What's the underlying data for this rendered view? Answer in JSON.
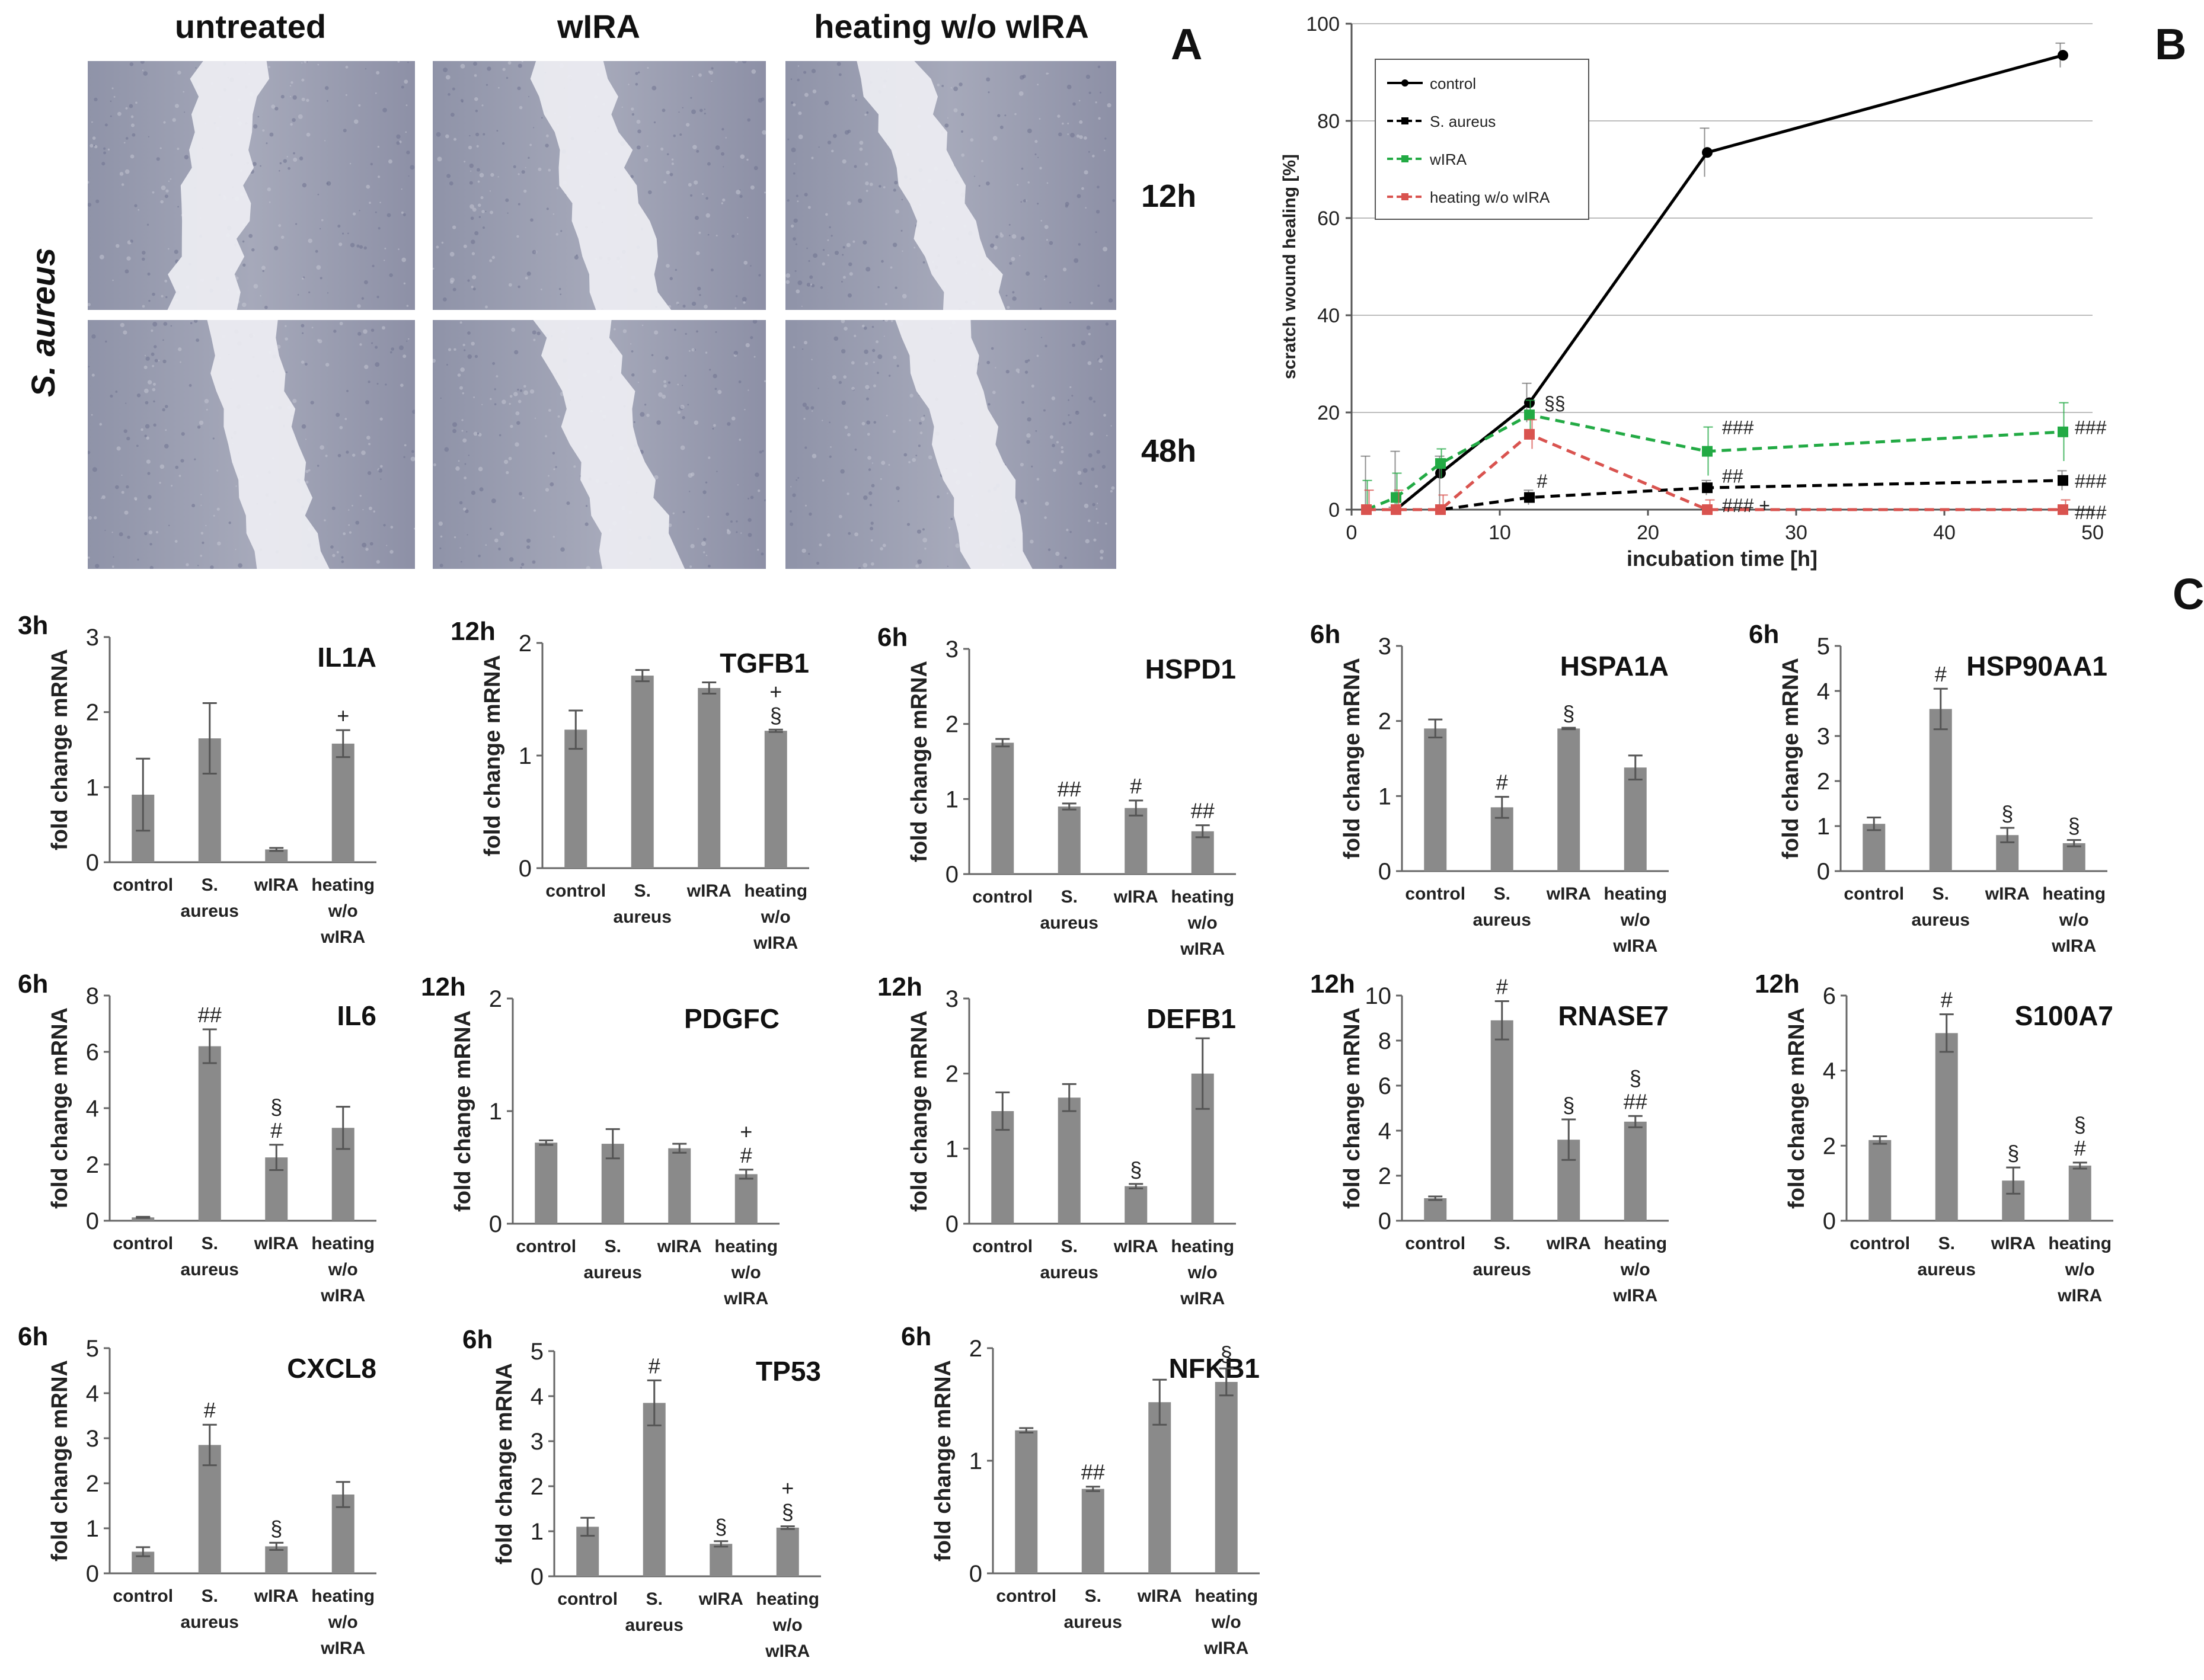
{
  "figure": {
    "panel_letters": [
      "A",
      "B",
      "C"
    ],
    "micrographs": {
      "side_label": "S. aureus",
      "columns": [
        "untreated",
        "wIRA",
        "heating w/o wIRA"
      ],
      "rows": [
        "12h",
        "48h"
      ]
    }
  },
  "chart_data": [
    {
      "id": "B",
      "type": "line",
      "title": "",
      "xlabel": "incubation time [h]",
      "ylabel": "scratch wound healing [%]",
      "xlim": [
        0,
        50
      ],
      "ylim": [
        0,
        100
      ],
      "xticks": [
        0,
        10,
        20,
        30,
        40,
        50
      ],
      "yticks": [
        0,
        20,
        40,
        60,
        80,
        100
      ],
      "grid": "horizontal",
      "legend_position": "top-left",
      "series": [
        {
          "name": "control",
          "color": "#000000",
          "dash": "solid",
          "marker": "circle",
          "x": [
            3,
            6,
            12,
            24,
            48
          ],
          "y": [
            0,
            7.5,
            22,
            73.5,
            93.5
          ],
          "err": [
            0.5,
            1,
            4,
            5,
            2.5
          ]
        },
        {
          "name": "S. aureus",
          "color": "#000000",
          "dash": "dashed",
          "marker": "square",
          "x": [
            1,
            3,
            6,
            12,
            24,
            48
          ],
          "y": [
            0,
            0,
            0,
            2.5,
            4.5,
            6
          ],
          "err": [
            11,
            12,
            11,
            1.5,
            1.5,
            2
          ]
        },
        {
          "name": "wIRA",
          "color": "#22aa44",
          "dash": "dashed",
          "marker": "square",
          "x": [
            1,
            3,
            6,
            12,
            24,
            48
          ],
          "y": [
            0,
            2.5,
            9.5,
            19.5,
            12,
            16
          ],
          "err": [
            6,
            5,
            3,
            3,
            5,
            6
          ]
        },
        {
          "name": "heating w/o wIRA",
          "color": "#d9534f",
          "dash": "dashed",
          "marker": "square",
          "x": [
            1,
            3,
            6,
            12,
            24,
            48
          ],
          "y": [
            0,
            0,
            0,
            15.5,
            0,
            0
          ],
          "err": [
            4,
            4,
            3,
            3,
            2,
            2
          ]
        }
      ],
      "annotations": [
        {
          "text": "§§",
          "x": 13,
          "y": 22
        },
        {
          "text": "#",
          "x": 12.5,
          "y": 6
        },
        {
          "text": "###",
          "x": 25,
          "y": 17
        },
        {
          "text": "##",
          "x": 25,
          "y": 7
        },
        {
          "text": "### +",
          "x": 25,
          "y": 1
        },
        {
          "text": "###",
          "x": 48.8,
          "y": 17
        },
        {
          "text": "###",
          "x": 48.8,
          "y": 6
        },
        {
          "text": "###",
          "x": 48.8,
          "y": -0.5
        }
      ]
    },
    {
      "id": "IL1A",
      "type": "bar",
      "title": "IL1A",
      "time": "3h",
      "ylabel": "fold change mRNA",
      "categories": [
        "control",
        "S. aureus",
        "wIRA",
        "heating w/o wIRA"
      ],
      "values": [
        0.9,
        1.65,
        0.17,
        1.58
      ],
      "errors": [
        0.48,
        0.47,
        0.02,
        0.18
      ],
      "ymax": 3,
      "yticks": [
        0,
        1,
        2,
        3
      ],
      "signif": [
        "",
        "",
        "",
        "+"
      ]
    },
    {
      "id": "TGFB1",
      "type": "bar",
      "title": "TGFB1",
      "time": "12h",
      "ylabel": "fold change mRNA",
      "categories": [
        "control",
        "S. aureus",
        "wIRA",
        "heating w/o wIRA"
      ],
      "values": [
        1.23,
        1.71,
        1.6,
        1.22
      ],
      "errors": [
        0.17,
        0.05,
        0.05,
        0.01
      ],
      "ymax": 2,
      "yticks": [
        0,
        1,
        2
      ],
      "signif": [
        "",
        "",
        "",
        "+\n§"
      ]
    },
    {
      "id": "HSPD1",
      "type": "bar",
      "title": "HSPD1",
      "time": "6h",
      "ylabel": "fold change mRNA",
      "categories": [
        "control",
        "S. aureus",
        "wIRA",
        "heating w/o wIRA"
      ],
      "values": [
        1.75,
        0.9,
        0.88,
        0.57
      ],
      "errors": [
        0.05,
        0.04,
        0.1,
        0.08
      ],
      "ymax": 3,
      "yticks": [
        0,
        1,
        2,
        3
      ],
      "signif": [
        "",
        "##",
        "#",
        "##"
      ]
    },
    {
      "id": "HSPA1A",
      "type": "bar",
      "title": "HSPA1A",
      "time": "6h",
      "ylabel": "fold change mRNA",
      "categories": [
        "control",
        "S. aureus",
        "wIRA",
        "heating w/o wIRA"
      ],
      "values": [
        1.9,
        0.85,
        1.9,
        1.38
      ],
      "errors": [
        0.12,
        0.14,
        0.01,
        0.16
      ],
      "ymax": 3,
      "yticks": [
        0,
        1,
        2,
        3
      ],
      "signif": [
        "",
        "#",
        "§",
        ""
      ]
    },
    {
      "id": "HSP90AA1",
      "type": "bar",
      "title": "HSP90AA1",
      "time": "6h",
      "ylabel": "fold change mRNA",
      "categories": [
        "control",
        "S. aureus",
        "wIRA",
        "heating w/o wIRA"
      ],
      "values": [
        1.05,
        3.6,
        0.8,
        0.62
      ],
      "errors": [
        0.14,
        0.45,
        0.16,
        0.07
      ],
      "ymax": 5,
      "yticks": [
        0,
        1,
        2,
        3,
        4,
        5
      ],
      "signif": [
        "",
        "#",
        "§",
        "§"
      ]
    },
    {
      "id": "IL6",
      "type": "bar",
      "title": "IL6",
      "time": "6h",
      "ylabel": "fold change mRNA",
      "categories": [
        "control",
        "S. aureus",
        "wIRA",
        "heating w/o wIRA"
      ],
      "values": [
        0.12,
        6.2,
        2.25,
        3.3
      ],
      "errors": [
        0.02,
        0.6,
        0.45,
        0.75
      ],
      "ymax": 8,
      "yticks": [
        0,
        2,
        4,
        6,
        8
      ],
      "signif": [
        "",
        "##",
        "§\n#",
        ""
      ]
    },
    {
      "id": "PDGFC",
      "type": "bar",
      "title": "PDGFC",
      "time": "12h",
      "ylabel": "fold change mRNA",
      "categories": [
        "control",
        "S. aureus",
        "wIRA",
        "heating w/o wIRA"
      ],
      "values": [
        0.72,
        0.71,
        0.67,
        0.44
      ],
      "errors": [
        0.02,
        0.13,
        0.04,
        0.04
      ],
      "ymax": 2,
      "yticks": [
        0,
        1,
        2
      ],
      "signif": [
        "",
        "",
        "",
        "+\n#"
      ]
    },
    {
      "id": "DEFB1",
      "type": "bar",
      "title": "DEFB1",
      "time": "12h",
      "ylabel": "fold change mRNA",
      "categories": [
        "control",
        "S. aureus",
        "wIRA",
        "heating w/o wIRA"
      ],
      "values": [
        1.5,
        1.68,
        0.5,
        2.0
      ],
      "errors": [
        0.25,
        0.18,
        0.03,
        0.47
      ],
      "ymax": 3,
      "yticks": [
        0,
        1,
        2,
        3
      ],
      "signif": [
        "",
        "",
        "§",
        ""
      ]
    },
    {
      "id": "RNASE7",
      "type": "bar",
      "title": "RNASE7",
      "time": "12h",
      "ylabel": "fold change mRNA",
      "categories": [
        "control",
        "S. aureus",
        "wIRA",
        "heating w/o wIRA"
      ],
      "values": [
        1.0,
        8.9,
        3.6,
        4.4
      ],
      "errors": [
        0.08,
        0.85,
        0.9,
        0.25
      ],
      "ymax": 10,
      "yticks": [
        0,
        2,
        4,
        6,
        8,
        10
      ],
      "signif": [
        "",
        "#",
        "§",
        "§\n##"
      ]
    },
    {
      "id": "S100A7",
      "type": "bar",
      "title": "S100A7",
      "time": "12h",
      "ylabel": "fold change mRNA",
      "categories": [
        "control",
        "S. aureus",
        "wIRA",
        "heating w/o wIRA"
      ],
      "values": [
        2.15,
        5.0,
        1.07,
        1.47
      ],
      "errors": [
        0.1,
        0.5,
        0.35,
        0.08
      ],
      "ymax": 6,
      "yticks": [
        0,
        2,
        4,
        6
      ],
      "signif": [
        "",
        "#",
        "§",
        "§\n#"
      ]
    },
    {
      "id": "CXCL8",
      "type": "bar",
      "title": "CXCL8",
      "time": "6h",
      "ylabel": "fold change mRNA",
      "categories": [
        "control",
        "S. aureus",
        "wIRA",
        "heating w/o wIRA"
      ],
      "values": [
        0.48,
        2.85,
        0.6,
        1.75
      ],
      "errors": [
        0.1,
        0.45,
        0.08,
        0.28
      ],
      "ymax": 5,
      "yticks": [
        0,
        1,
        2,
        3,
        4,
        5
      ],
      "signif": [
        "",
        "#",
        "§",
        ""
      ]
    },
    {
      "id": "TP53",
      "type": "bar",
      "title": "TP53",
      "time": "6h",
      "ylabel": "fold change mRNA",
      "categories": [
        "control",
        "S. aureus",
        "wIRA",
        "heating w/o wIRA"
      ],
      "values": [
        1.1,
        3.85,
        0.72,
        1.08
      ],
      "errors": [
        0.2,
        0.5,
        0.06,
        0.03
      ],
      "ymax": 5,
      "yticks": [
        0,
        1,
        2,
        3,
        4,
        5
      ],
      "signif": [
        "",
        "#",
        "§",
        "+\n§"
      ]
    },
    {
      "id": "NFKB1",
      "type": "bar",
      "title": "NFKB1",
      "time": "6h",
      "ylabel": "fold change mRNA",
      "categories": [
        "control",
        "S. aureus",
        "wIRA",
        "heating w/o wIRA"
      ],
      "values": [
        1.27,
        0.75,
        1.52,
        1.7
      ],
      "errors": [
        0.02,
        0.02,
        0.2,
        0.12
      ],
      "ymax": 2,
      "yticks": [
        0,
        1,
        2
      ],
      "signif": [
        "",
        "##",
        "",
        "§"
      ]
    }
  ]
}
